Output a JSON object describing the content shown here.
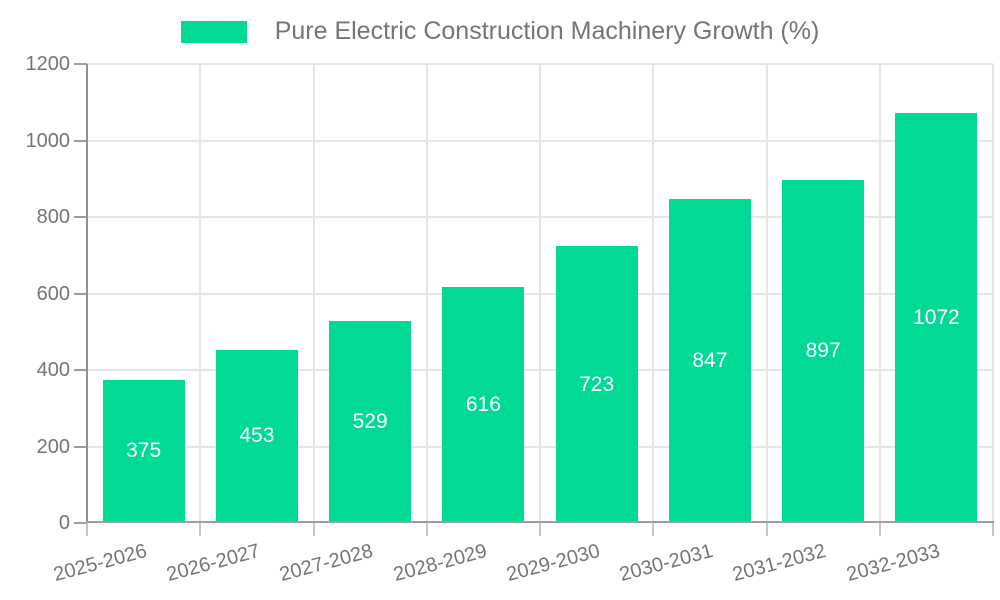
{
  "legend": {
    "items": [
      {
        "label": "Pure Electric Construction Machinery Growth (%)",
        "color": "#00da94"
      }
    ]
  },
  "chart_data": {
    "type": "bar",
    "title": "Pure Electric Construction Machinery Growth (%)",
    "categories": [
      "2025-2026",
      "2026-2027",
      "2027-2028",
      "2028-2029",
      "2029-2030",
      "2030-2031",
      "2031-2032",
      "2032-2033"
    ],
    "values": [
      375,
      453,
      529,
      616,
      723,
      847,
      897,
      1072
    ],
    "xlabel": "",
    "ylabel": "",
    "ylim": [
      0,
      1200
    ],
    "ytick_step": 200,
    "ytick_labels": [
      "0",
      "200",
      "400",
      "600",
      "800",
      "1000",
      "1200"
    ],
    "grid": true,
    "legend_position": "top-center",
    "bar_color": "#00da94",
    "value_label_color": "#ffffff",
    "value_label_position": "inside-center",
    "grid_color": "#e6e6e6",
    "axis_color": "#9e9e9e",
    "tick_label_color": "#757575",
    "x_label_rotation_deg": -15
  }
}
